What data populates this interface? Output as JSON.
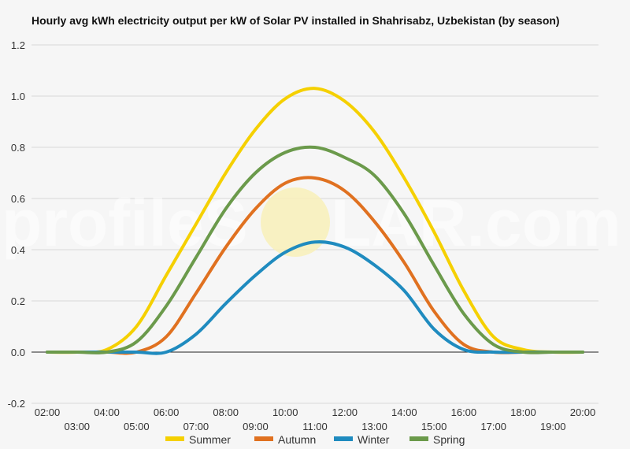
{
  "watermark": {
    "text_left": "profileS",
    "text_right": "LAR.com"
  },
  "chart_data": {
    "type": "line",
    "title": "Hourly avg kWh electricity output per kW of Solar PV installed in Shahrisabz, Uzbekistan (by season)",
    "xlabel": "",
    "ylabel": "",
    "ylim": [
      -0.2,
      1.2
    ],
    "yticks": [
      "1.2",
      "1.0",
      "0.8",
      "0.6",
      "0.4",
      "0.2",
      "0.0",
      "-0.2"
    ],
    "x": [
      "02:00",
      "03:00",
      "04:00",
      "05:00",
      "06:00",
      "07:00",
      "08:00",
      "09:00",
      "10:00",
      "11:00",
      "12:00",
      "13:00",
      "14:00",
      "15:00",
      "16:00",
      "17:00",
      "18:00",
      "19:00",
      "20:00"
    ],
    "legend_position": "bottom",
    "grid": true,
    "series": [
      {
        "name": "Summer",
        "color": "#f5d000",
        "values": [
          0.0,
          0.0,
          0.01,
          0.1,
          0.3,
          0.5,
          0.7,
          0.87,
          0.99,
          1.03,
          0.98,
          0.86,
          0.68,
          0.47,
          0.24,
          0.06,
          0.01,
          0.0,
          0.0
        ]
      },
      {
        "name": "Autumn",
        "color": "#e07120",
        "values": [
          0.0,
          0.0,
          0.0,
          0.0,
          0.06,
          0.23,
          0.41,
          0.56,
          0.66,
          0.68,
          0.63,
          0.51,
          0.35,
          0.16,
          0.03,
          0.0,
          0.0,
          0.0,
          0.0
        ]
      },
      {
        "name": "Winter",
        "color": "#1f8bbf",
        "values": [
          0.0,
          0.0,
          0.0,
          0.0,
          0.0,
          0.07,
          0.19,
          0.3,
          0.39,
          0.43,
          0.41,
          0.34,
          0.24,
          0.09,
          0.01,
          0.0,
          0.0,
          0.0,
          0.0
        ]
      },
      {
        "name": "Spring",
        "color": "#6b9a4b",
        "values": [
          0.0,
          0.0,
          0.0,
          0.04,
          0.18,
          0.37,
          0.56,
          0.7,
          0.78,
          0.8,
          0.76,
          0.69,
          0.54,
          0.34,
          0.15,
          0.03,
          0.0,
          0.0,
          0.0
        ]
      }
    ]
  }
}
